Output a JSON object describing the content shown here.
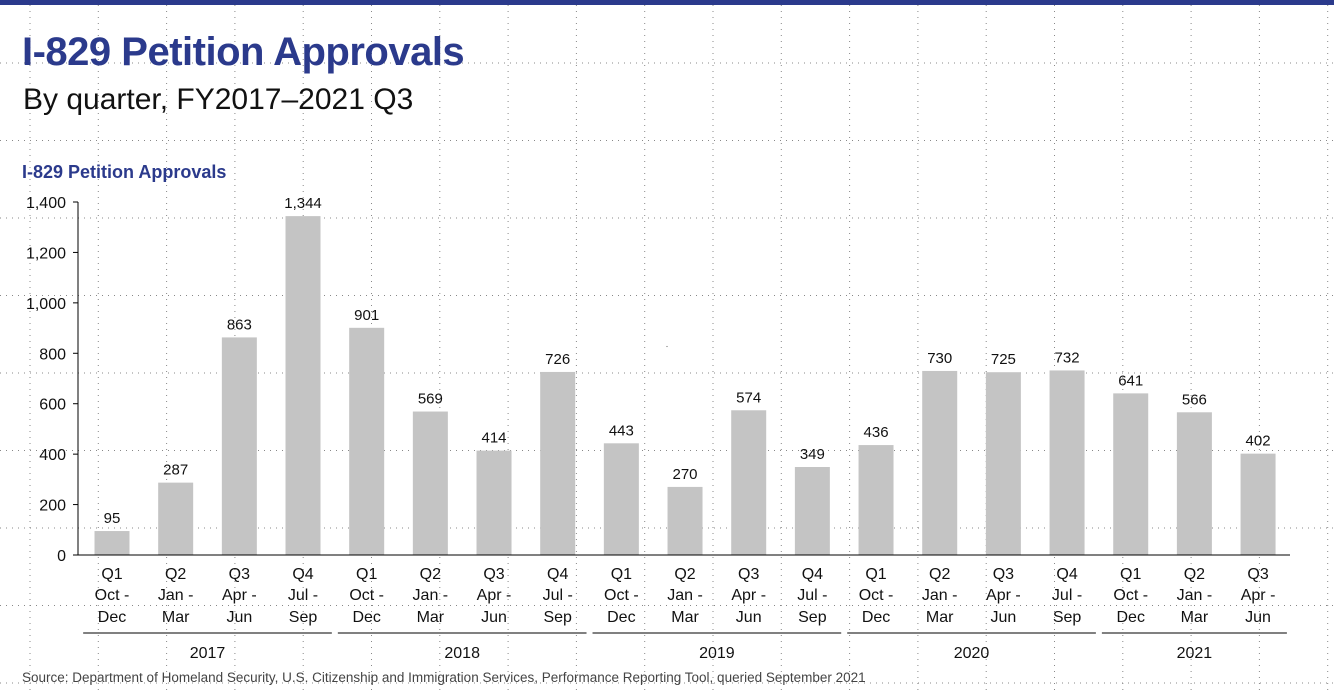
{
  "header": {
    "title": "I-829 Petition Approvals",
    "subtitle": "By quarter, FY2017–2021 Q3"
  },
  "source": "Source: Department of Homeland Security, U.S. Citizenship and Immigration Services, Performance Reporting Tool, queried September 2021",
  "colors": {
    "accent": "#2b3a8c",
    "bar": "#c4c4c4"
  },
  "chart_data": {
    "type": "bar",
    "title": "I-829 Petition Approvals",
    "xlabel": "",
    "ylabel": "",
    "ylim": [
      0,
      1400
    ],
    "yticks": [
      0,
      200,
      400,
      600,
      800,
      1000,
      1200,
      1400
    ],
    "ytick_labels": [
      "0",
      "200",
      "400",
      "600",
      "800",
      "1,000",
      "1,200",
      "1,400"
    ],
    "categories": [
      {
        "q": "Q1",
        "m1": "Oct -",
        "m2": "Dec"
      },
      {
        "q": "Q2",
        "m1": "Jan -",
        "m2": "Mar"
      },
      {
        "q": "Q3",
        "m1": "Apr -",
        "m2": "Jun"
      },
      {
        "q": "Q4",
        "m1": "Jul -",
        "m2": "Sep"
      },
      {
        "q": "Q1",
        "m1": "Oct -",
        "m2": "Dec"
      },
      {
        "q": "Q2",
        "m1": "Jan -",
        "m2": "Mar"
      },
      {
        "q": "Q3",
        "m1": "Apr -",
        "m2": "Jun"
      },
      {
        "q": "Q4",
        "m1": "Jul -",
        "m2": "Sep"
      },
      {
        "q": "Q1",
        "m1": "Oct -",
        "m2": "Dec"
      },
      {
        "q": "Q2",
        "m1": "Jan -",
        "m2": "Mar"
      },
      {
        "q": "Q3",
        "m1": "Apr -",
        "m2": "Jun"
      },
      {
        "q": "Q4",
        "m1": "Jul -",
        "m2": "Sep"
      },
      {
        "q": "Q1",
        "m1": "Oct -",
        "m2": "Dec"
      },
      {
        "q": "Q2",
        "m1": "Jan -",
        "m2": "Mar"
      },
      {
        "q": "Q3",
        "m1": "Apr -",
        "m2": "Jun"
      },
      {
        "q": "Q4",
        "m1": "Jul -",
        "m2": "Sep"
      },
      {
        "q": "Q1",
        "m1": "Oct -",
        "m2": "Dec"
      },
      {
        "q": "Q2",
        "m1": "Jan -",
        "m2": "Mar"
      },
      {
        "q": "Q3",
        "m1": "Apr -",
        "m2": "Jun"
      }
    ],
    "values": [
      95,
      287,
      863,
      1344,
      901,
      569,
      414,
      726,
      443,
      270,
      574,
      349,
      436,
      730,
      725,
      732,
      641,
      566,
      402
    ],
    "value_labels": [
      "95",
      "287",
      "863",
      "1,344",
      "901",
      "569",
      "414",
      "726",
      "443",
      "270",
      "574",
      "349",
      "436",
      "730",
      "725",
      "732",
      "641",
      "566",
      "402"
    ],
    "groups": [
      {
        "label": "2017",
        "count": 4
      },
      {
        "label": "2018",
        "count": 4
      },
      {
        "label": "2019",
        "count": 4
      },
      {
        "label": "2020",
        "count": 4
      },
      {
        "label": "2021",
        "count": 3
      }
    ],
    "grid": false,
    "legend": "none"
  }
}
